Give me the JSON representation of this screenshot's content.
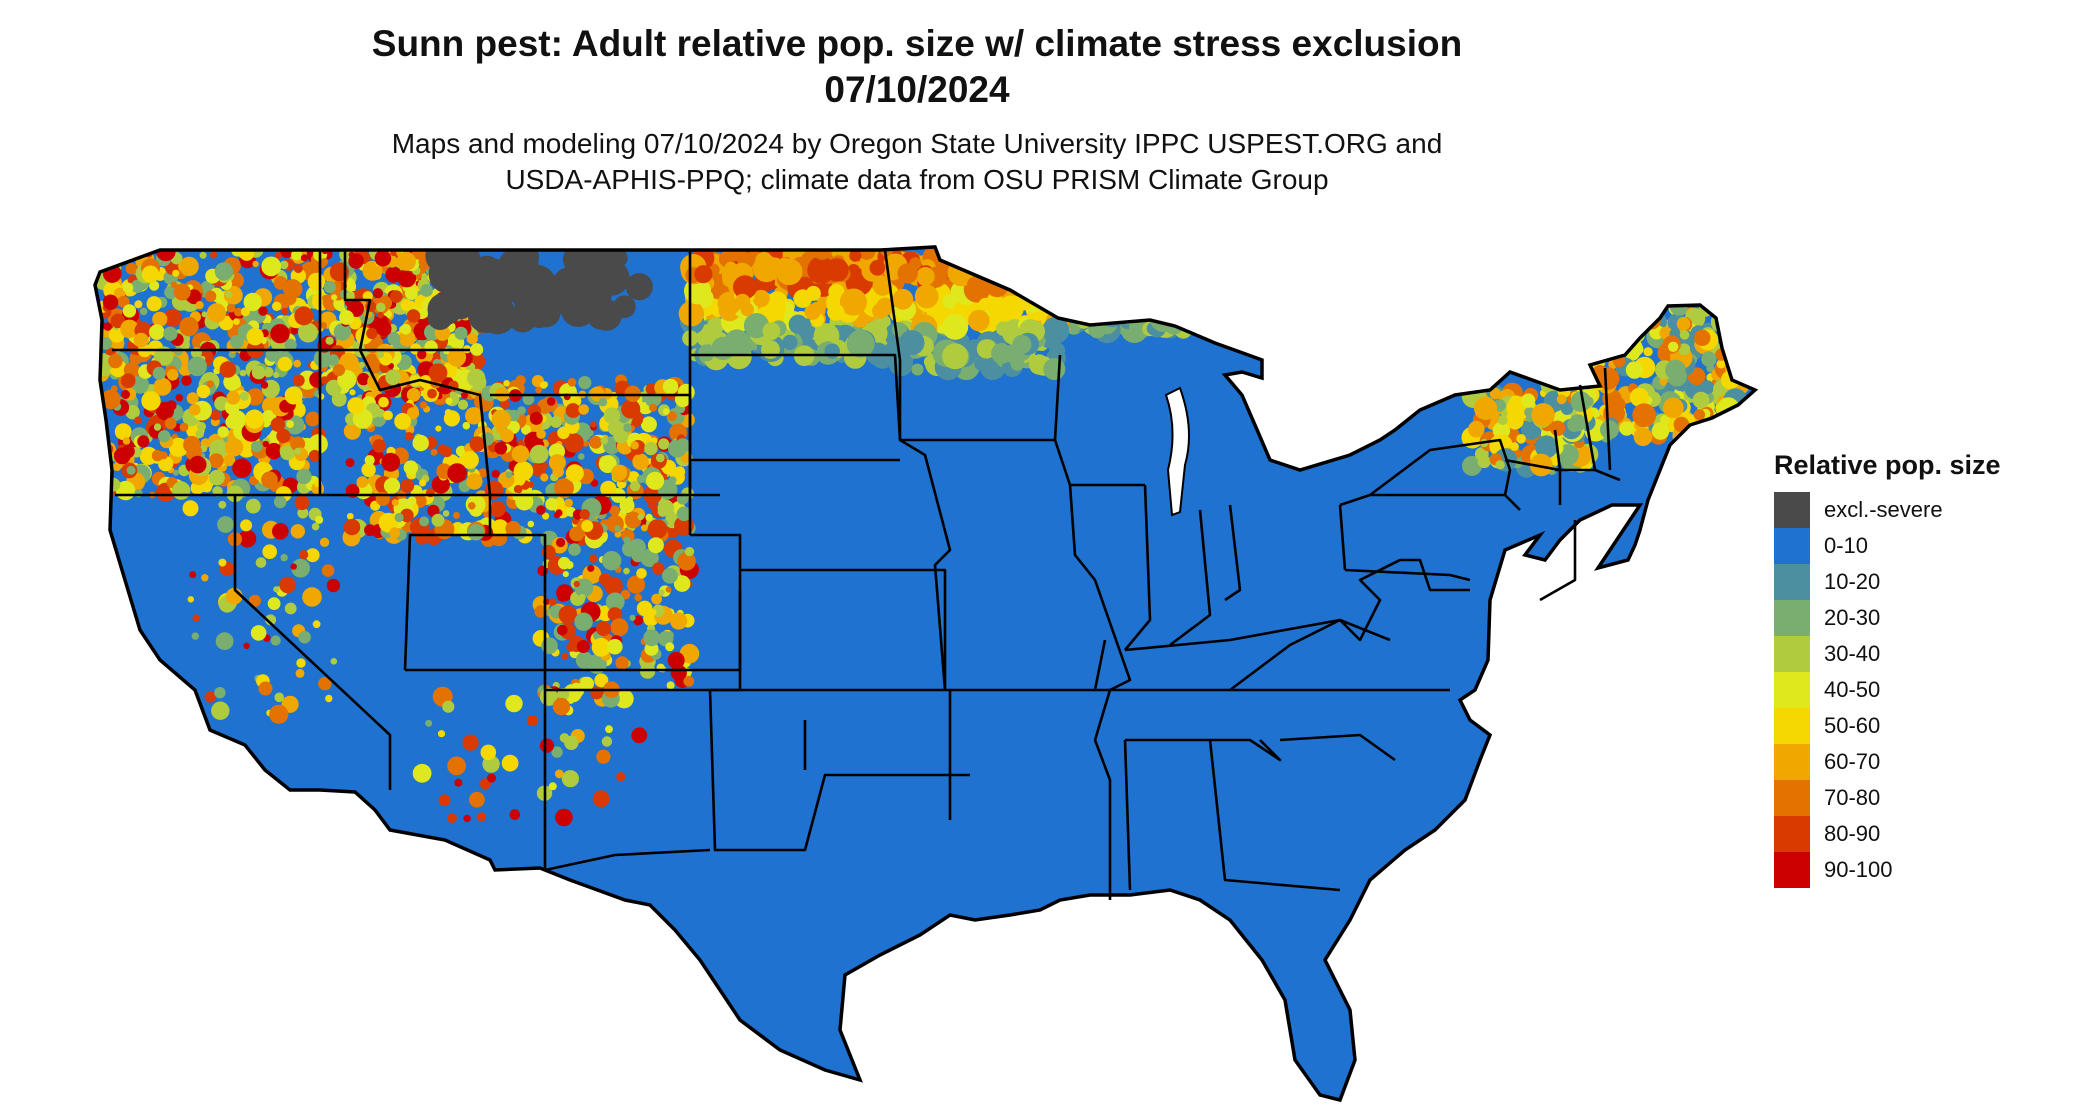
{
  "title": {
    "line1": "Sunn pest: Adult relative pop. size w/ climate stress exclusion",
    "line2": "07/10/2024"
  },
  "subtitle": {
    "line1": "Maps and modeling 07/10/2024 by Oregon State University IPPC USPEST.ORG and",
    "line2": "USDA-APHIS-PPQ; climate data from OSU PRISM Climate Group"
  },
  "legend": {
    "title": "Relative pop. size",
    "items": [
      {
        "label": "excl.-severe",
        "color": "#4a4a4a"
      },
      {
        "label": "0-10",
        "color": "#1f72cf"
      },
      {
        "label": "10-20",
        "color": "#4b8fa1"
      },
      {
        "label": "20-30",
        "color": "#7aad70"
      },
      {
        "label": "30-40",
        "color": "#b0cc3e"
      },
      {
        "label": "40-50",
        "color": "#dfe81c"
      },
      {
        "label": "50-60",
        "color": "#f5d800"
      },
      {
        "label": "60-70",
        "color": "#f0a800"
      },
      {
        "label": "70-80",
        "color": "#e37200"
      },
      {
        "label": "80-90",
        "color": "#d93a00"
      },
      {
        "label": "90-100",
        "color": "#cc0000"
      }
    ]
  },
  "map": {
    "region": "Contiguous United States",
    "colors": {
      "base": "#1f72cf",
      "border": "#000000",
      "excluded": "#4a4a4a"
    }
  }
}
